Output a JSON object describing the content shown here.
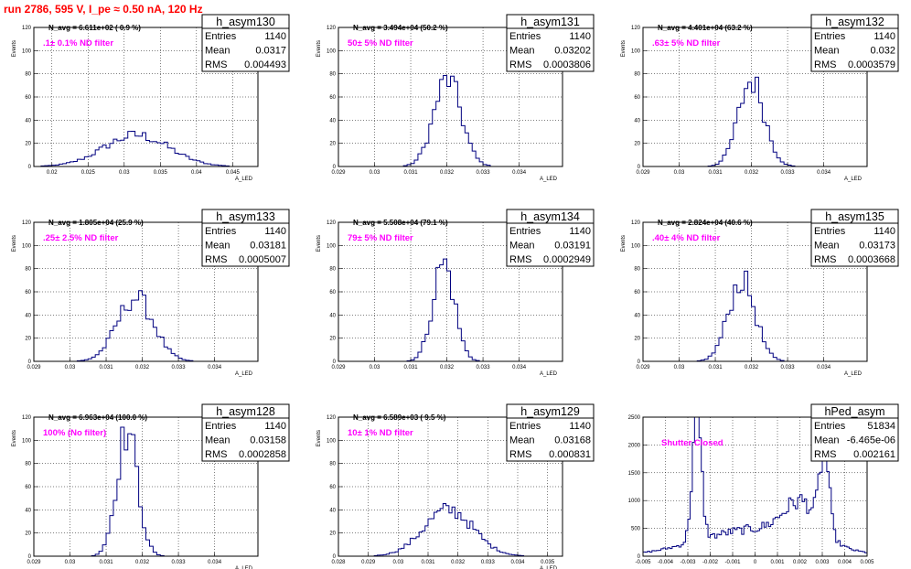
{
  "run_title": "run 2786,   595 V, I_pe ≈ 0.50 nA, 120 Hz",
  "stats_labels": {
    "entries": "Entries",
    "mean": "Mean",
    "rms": "RMS"
  },
  "colors": {
    "histogram": "#000080",
    "title": "#ff0000",
    "note": "#ff00ff",
    "grid": "#000000"
  },
  "chart_data": [
    {
      "type": "bar",
      "name": "h_asym130",
      "entries": "1140",
      "mean": "0.0317",
      "rms": "0.004493",
      "navg": "N_avg = 6.611e+02 ( 0.9 %)",
      "note": ".1± 0.1% ND filter",
      "xlabel": "A_LED",
      "ylabel": "Events",
      "xlim": [
        0.0175,
        0.0485
      ],
      "ylim": [
        0,
        120
      ],
      "xticks": [
        0.02,
        0.025,
        0.03,
        0.035,
        0.04,
        0.045
      ],
      "xtick_labels": [
        "0.02",
        "0.025",
        "0.03",
        "0.035",
        "0.04",
        "0.045"
      ],
      "yticks": [
        0,
        20,
        40,
        60,
        80,
        100,
        120
      ],
      "bins": {
        "start": 0.0175,
        "width": 0.0005,
        "n": 62
      },
      "shape": [
        {
          "mu": 0.0317,
          "sigma": 0.0045,
          "amp": 27
        }
      ]
    },
    {
      "type": "bar",
      "name": "h_asym131",
      "entries": "1140",
      "mean": "0.03202",
      "rms": "0.0003806",
      "navg": "N_avg = 3.494e+04 (50.2 %)",
      "note": "50± 5% ND filter",
      "xlabel": "A_LED",
      "ylabel": "Events",
      "xlim": [
        0.029,
        0.0352
      ],
      "ylim": [
        0,
        120
      ],
      "xticks": [
        0.029,
        0.03,
        0.031,
        0.032,
        0.033,
        0.034
      ],
      "xtick_labels": [
        "0.029",
        "0.03",
        "0.031",
        "0.032",
        "0.033",
        "0.034"
      ],
      "yticks": [
        0,
        20,
        40,
        60,
        80,
        100,
        120
      ],
      "bins": {
        "start": 0.029,
        "width": 0.0001,
        "n": 62
      },
      "shape": [
        {
          "mu": 0.03202,
          "sigma": 0.00038,
          "amp": 75
        }
      ]
    },
    {
      "type": "bar",
      "name": "h_asym132",
      "entries": "1140",
      "mean": "0.032",
      "rms": "0.0003579",
      "navg": "N_avg = 4.401e+04 (63.2 %)",
      "note": ".63± 5% ND filter",
      "xlabel": "A_LED",
      "ylabel": "Events",
      "xlim": [
        0.029,
        0.0352
      ],
      "ylim": [
        0,
        120
      ],
      "xticks": [
        0.029,
        0.03,
        0.031,
        0.032,
        0.033,
        0.034
      ],
      "xtick_labels": [
        "0.029",
        "0.03",
        "0.031",
        "0.032",
        "0.033",
        "0.034"
      ],
      "yticks": [
        0,
        20,
        40,
        60,
        80,
        100,
        120
      ],
      "bins": {
        "start": 0.029,
        "width": 0.0001,
        "n": 62
      },
      "shape": [
        {
          "mu": 0.032,
          "sigma": 0.00036,
          "amp": 74
        }
      ]
    },
    {
      "type": "bar",
      "name": "h_asym133",
      "entries": "1140",
      "mean": "0.03181",
      "rms": "0.0005007",
      "navg": "N_avg = 1.805e+04 (25.9 %)",
      "note": ".25± 2.5% ND filter",
      "xlabel": "A_LED",
      "ylabel": "Events",
      "xlim": [
        0.029,
        0.0352
      ],
      "ylim": [
        0,
        120
      ],
      "xticks": [
        0.029,
        0.03,
        0.031,
        0.032,
        0.033,
        0.034
      ],
      "xtick_labels": [
        "0.029",
        "0.03",
        "0.031",
        "0.032",
        "0.033",
        "0.034"
      ],
      "yticks": [
        0,
        20,
        40,
        60,
        80,
        100,
        120
      ],
      "bins": {
        "start": 0.029,
        "width": 0.0001,
        "n": 62
      },
      "shape": [
        {
          "mu": 0.03181,
          "sigma": 0.0005,
          "amp": 55
        }
      ]
    },
    {
      "type": "bar",
      "name": "h_asym134",
      "entries": "1140",
      "mean": "0.03191",
      "rms": "0.0002949",
      "navg": "N_avg = 5.508e+04 (79.1 %)",
      "note": "79± 5% ND filter",
      "xlabel": "A_LED",
      "ylabel": "Events",
      "xlim": [
        0.029,
        0.0352
      ],
      "ylim": [
        0,
        120
      ],
      "xticks": [
        0.029,
        0.03,
        0.031,
        0.032,
        0.033,
        0.034
      ],
      "xtick_labels": [
        "0.029",
        "0.03",
        "0.031",
        "0.032",
        "0.033",
        "0.034"
      ],
      "yticks": [
        0,
        20,
        40,
        60,
        80,
        100,
        120
      ],
      "bins": {
        "start": 0.029,
        "width": 0.0001,
        "n": 62
      },
      "shape": [
        {
          "mu": 0.03191,
          "sigma": 0.0003,
          "amp": 85
        }
      ]
    },
    {
      "type": "bar",
      "name": "h_asym135",
      "entries": "1140",
      "mean": "0.03173",
      "rms": "0.0003668",
      "navg": "N_avg = 2.824e+04 (40.6 %)",
      "note": ".40± 4% ND filter",
      "xlabel": "A_LED",
      "ylabel": "Events",
      "xlim": [
        0.029,
        0.0352
      ],
      "ylim": [
        0,
        120
      ],
      "xticks": [
        0.029,
        0.03,
        0.031,
        0.032,
        0.033,
        0.034
      ],
      "xtick_labels": [
        "0.029",
        "0.03",
        "0.031",
        "0.032",
        "0.033",
        "0.034"
      ],
      "yticks": [
        0,
        20,
        40,
        60,
        80,
        100,
        120
      ],
      "bins": {
        "start": 0.029,
        "width": 0.0001,
        "n": 62
      },
      "shape": [
        {
          "mu": 0.03173,
          "sigma": 0.00037,
          "amp": 70
        }
      ]
    },
    {
      "type": "bar",
      "name": "h_asym128",
      "entries": "1140",
      "mean": "0.03158",
      "rms": "0.0002858",
      "navg": "N_avg = 6.963e+04 (100.0 %)",
      "note": "100% (No filter)",
      "xlabel": "A_LED",
      "ylabel": "Events",
      "xlim": [
        0.029,
        0.0352
      ],
      "ylim": [
        0,
        120
      ],
      "xticks": [
        0.029,
        0.03,
        0.031,
        0.032,
        0.033,
        0.034
      ],
      "xtick_labels": [
        "0.029",
        "0.03",
        "0.031",
        "0.032",
        "0.033",
        "0.034"
      ],
      "yticks": [
        0,
        20,
        40,
        60,
        80,
        100,
        120
      ],
      "bins": {
        "start": 0.029,
        "width": 0.0001,
        "n": 62
      },
      "shape": [
        {
          "mu": 0.03158,
          "sigma": 0.00029,
          "amp": 108
        }
      ]
    },
    {
      "type": "bar",
      "name": "h_asym129",
      "entries": "1140",
      "mean": "0.03168",
      "rms": "0.000831",
      "navg": "N_avg = 6.589e+03 ( 9.5 %)",
      "note": "10± 1% ND filter",
      "xlabel": "A_LED",
      "ylabel": "Events",
      "xlim": [
        0.028,
        0.0355
      ],
      "ylim": [
        0,
        120
      ],
      "xticks": [
        0.028,
        0.029,
        0.03,
        0.031,
        0.032,
        0.033,
        0.034,
        0.035
      ],
      "xtick_labels": [
        "0.028",
        "0.029",
        "0.03",
        "0.031",
        "0.032",
        "0.033",
        "0.034",
        "0.035"
      ],
      "yticks": [
        0,
        20,
        40,
        60,
        80,
        100,
        120
      ],
      "bins": {
        "start": 0.028,
        "width": 0.0001,
        "n": 75
      },
      "shape": [
        {
          "mu": 0.03168,
          "sigma": 0.00083,
          "amp": 40
        }
      ]
    },
    {
      "type": "bar",
      "name": "hPed_asym",
      "entries": "51834",
      "mean": "-6.465e-06",
      "rms": "0.002161",
      "navg": "",
      "note": "Shutter Closed",
      "xlabel": "",
      "ylabel": "",
      "xlim": [
        -0.005,
        0.005
      ],
      "ylim": [
        0,
        2500
      ],
      "xticks": [
        -0.005,
        -0.004,
        -0.003,
        -0.002,
        -0.001,
        0,
        0.001,
        0.002,
        0.003,
        0.004,
        0.005
      ],
      "xtick_labels": [
        "-0.005",
        "-0.004",
        "-0.003",
        "-0.002",
        "-0.001",
        "0",
        "0.001",
        "0.002",
        "0.003",
        "0.004",
        "0.005"
      ],
      "yticks": [
        0,
        500,
        1000,
        1500,
        2000,
        2500
      ],
      "bins": {
        "start": -0.005,
        "width": 0.0001,
        "n": 100
      },
      "shape": [
        {
          "mu": -0.0026,
          "sigma": 0.0002,
          "amp": 2300
        },
        {
          "mu": 0.0031,
          "sigma": 0.0002,
          "amp": 1450
        },
        {
          "mu": 0.0021,
          "sigma": 0.0008,
          "amp": 650
        },
        {
          "mu": 0.0,
          "sigma": 0.0025,
          "amp": 480
        }
      ]
    }
  ]
}
